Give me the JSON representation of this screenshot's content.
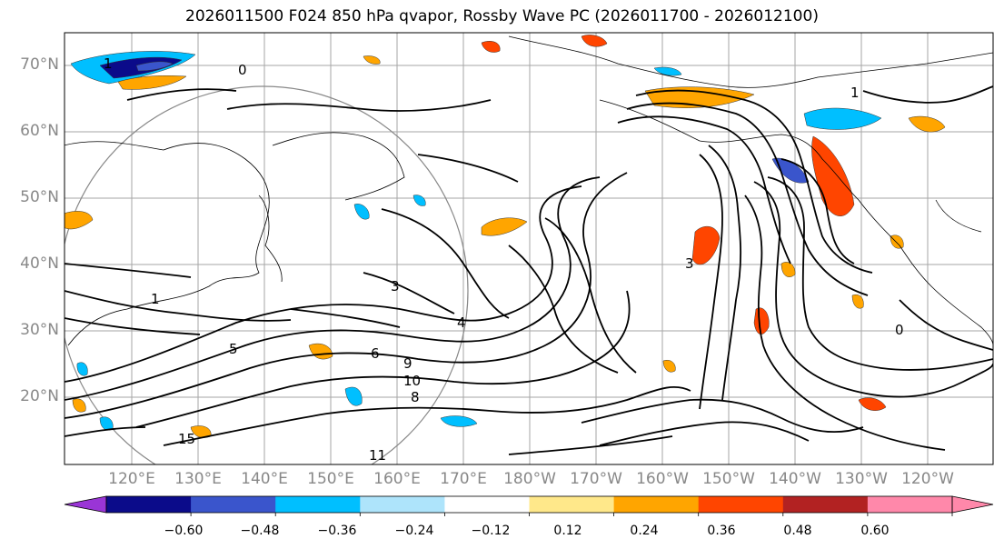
{
  "title": "2026011500 F024 850 hPa qvapor, Rossby Wave PC (2026011700 - 2026012100)",
  "lat_labels": [
    "70°N",
    "60°N",
    "50°N",
    "40°N",
    "30°N",
    "20°N"
  ],
  "lon_labels": [
    "120°E",
    "130°E",
    "140°E",
    "150°E",
    "160°E",
    "170°E",
    "180°W",
    "170°W",
    "160°W",
    "150°W",
    "140°W",
    "130°W",
    "120°W"
  ],
  "colorbar": {
    "tick_labels": [
      "−0.60",
      "−0.48",
      "−0.36",
      "−0.24",
      "−0.12",
      "0.12",
      "0.24",
      "0.36",
      "0.48",
      "0.60"
    ],
    "colors": [
      "#9a35d6",
      "#0b0b8a",
      "#3a55cc",
      "#00bfff",
      "#aee4fb",
      "#ffffff",
      "#ffe88a",
      "#ffa500",
      "#ff4500",
      "#b22222",
      "#ff88aa",
      "#ff88aa"
    ]
  },
  "contour_labels": [
    "1",
    "0",
    "1",
    "3",
    "4",
    "5",
    "6",
    "8",
    "9",
    "10",
    "11",
    "15",
    "3",
    "1",
    "0"
  ],
  "colors": {
    "positive_strong": "#ff4500",
    "positive": "#ffa500",
    "positive_light": "#ffe88a",
    "negative_strong": "#0b0b8a",
    "negative": "#00bfff",
    "negative_light": "#aee4fb"
  }
}
